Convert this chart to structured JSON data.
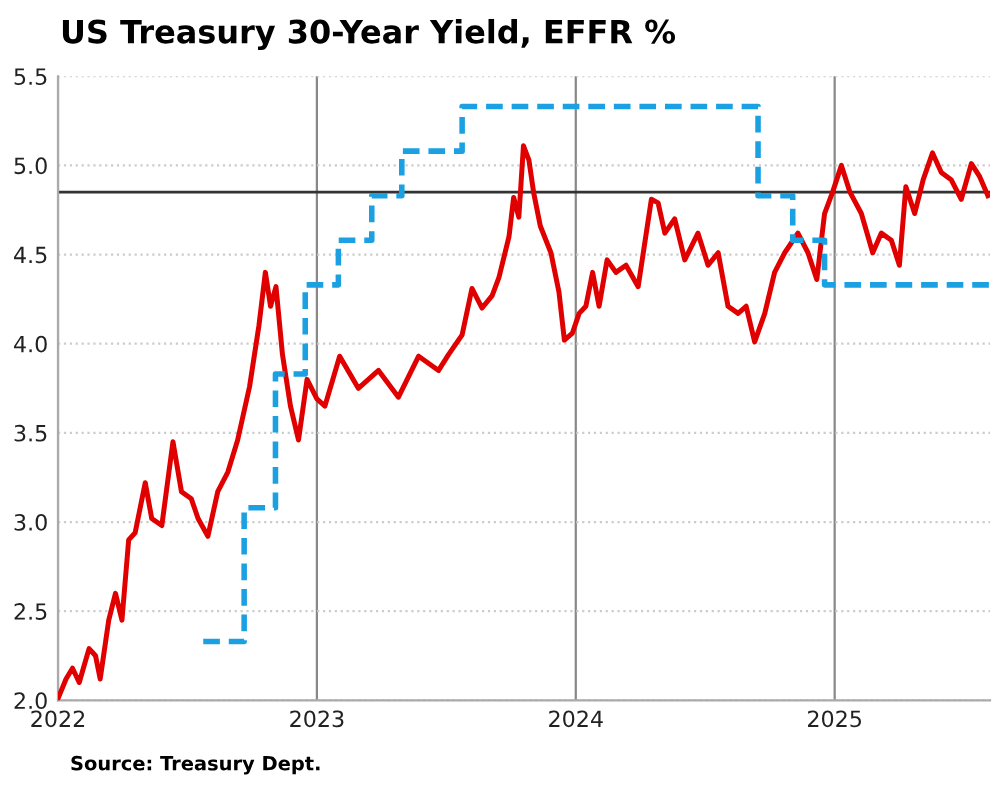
{
  "chart_data": {
    "type": "line",
    "title": "US Treasury 30-Year Yield, EFFR %",
    "series": [
      {
        "color": "#e00000",
        "x": [
          2022.0,
          2022.031,
          2022.056,
          2022.082,
          2022.12,
          2022.145,
          2022.163,
          2022.196,
          2022.222,
          2022.247,
          2022.273,
          2022.298,
          2022.337,
          2022.362,
          2022.401,
          2022.444,
          2022.477,
          2022.515,
          2022.541,
          2022.579,
          2022.617,
          2022.656,
          2022.694,
          2022.74,
          2022.776,
          2022.801,
          2022.821,
          2022.842,
          2022.867,
          2022.898,
          2022.929,
          2022.962,
          2023.0,
          2023.031,
          2023.088,
          2023.16,
          2023.238,
          2023.315,
          2023.393,
          2023.47,
          2023.509,
          2023.561,
          2023.599,
          2023.638,
          2023.677,
          2023.703,
          2023.742,
          2023.76,
          2023.78,
          2023.798,
          2023.819,
          2023.837,
          2023.863,
          2023.904,
          2023.935,
          2023.956,
          2023.987,
          2024.013,
          2024.039,
          2024.065,
          2024.09,
          2024.121,
          2024.155,
          2024.194,
          2024.241,
          2024.292,
          2024.318,
          2024.344,
          2024.382,
          2024.421,
          2024.472,
          2024.511,
          2024.55,
          2024.588,
          2024.627,
          2024.658,
          2024.691,
          2024.73,
          2024.768,
          2024.807,
          2024.858,
          2024.897,
          2024.931,
          2024.961,
          2024.992,
          2025.026,
          2025.059,
          2025.103,
          2025.147,
          2025.18,
          2025.219,
          2025.25,
          2025.275,
          2025.309,
          2025.342,
          2025.378,
          2025.412,
          2025.45,
          2025.489,
          2025.528,
          2025.559,
          2025.592
        ],
        "values": [
          2.01,
          2.12,
          2.18,
          2.1,
          2.29,
          2.25,
          2.12,
          2.45,
          2.6,
          2.45,
          2.9,
          2.94,
          3.22,
          3.02,
          2.98,
          3.45,
          3.17,
          3.13,
          3.02,
          2.92,
          3.17,
          3.28,
          3.46,
          3.76,
          4.1,
          4.4,
          4.21,
          4.32,
          3.94,
          3.65,
          3.46,
          3.8,
          3.69,
          3.65,
          3.93,
          3.75,
          3.85,
          3.7,
          3.93,
          3.85,
          3.94,
          4.05,
          4.31,
          4.2,
          4.27,
          4.37,
          4.6,
          4.82,
          4.71,
          5.11,
          5.03,
          4.85,
          4.66,
          4.51,
          4.29,
          4.02,
          4.06,
          4.17,
          4.21,
          4.4,
          4.21,
          4.47,
          4.4,
          4.44,
          4.32,
          4.81,
          4.79,
          4.62,
          4.7,
          4.47,
          4.62,
          4.44,
          4.51,
          4.21,
          4.17,
          4.21,
          4.01,
          4.17,
          4.4,
          4.51,
          4.62,
          4.51,
          4.36,
          4.73,
          4.85,
          5.0,
          4.85,
          4.73,
          4.51,
          4.62,
          4.58,
          4.44,
          4.88,
          4.73,
          4.92,
          5.07,
          4.96,
          4.92,
          4.81,
          5.01,
          4.94,
          4.83
        ]
      },
      {
        "color": "#1ba1e2",
        "type": "step",
        "line_style": "dashed",
        "x": [
          2022.561,
          2022.719,
          2022.84,
          2022.955,
          2023.083,
          2023.212,
          2023.328,
          2023.561,
          2024.704,
          2024.838,
          2024.961,
          2025.6
        ],
        "values": [
          2.33,
          3.08,
          3.83,
          4.33,
          4.58,
          4.83,
          5.08,
          5.33,
          4.83,
          4.58,
          4.33,
          4.33
        ]
      }
    ],
    "xlim": [
      2022.0,
      2025.6
    ],
    "xticks": [
      2022,
      2023,
      2024,
      2025
    ],
    "ylim": [
      2.0,
      5.5
    ],
    "yticks": [
      {
        "value": 2,
        "label": "2.0"
      },
      2.5,
      {
        "value": 3,
        "label": "3.0"
      },
      3.5,
      {
        "value": 4,
        "label": "4.0"
      },
      4.5,
      {
        "value": 5,
        "label": "5.0"
      },
      5.5
    ],
    "ref_lines": [
      {
        "axis": "y",
        "value": 4.85,
        "color": "#333333"
      }
    ],
    "grid": true,
    "legend": false,
    "annotations": [
      "Source: Treasury Dept."
    ]
  }
}
